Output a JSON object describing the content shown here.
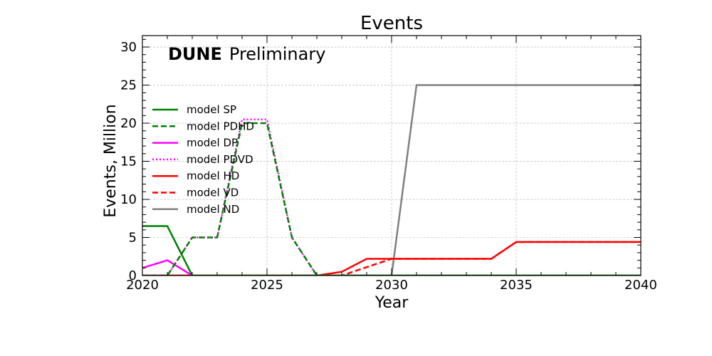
{
  "chart_data": {
    "type": "line",
    "title": "Events",
    "xlabel": "Year",
    "ylabel": "Events, Million",
    "annotation": {
      "bold": "DUNE",
      "text": "Preliminary"
    },
    "xlim": [
      2020,
      2040
    ],
    "ylim": [
      0,
      31.5
    ],
    "xticks": [
      2020,
      2025,
      2030,
      2035,
      2040
    ],
    "yticks": [
      0,
      5,
      10,
      15,
      20,
      25,
      30
    ],
    "grid": true,
    "legend_position": "left",
    "x": [
      2020,
      2021,
      2022,
      2023,
      2024,
      2025,
      2026,
      2027,
      2028,
      2029,
      2030,
      2031,
      2032,
      2033,
      2034,
      2035,
      2036,
      2037,
      2038,
      2039,
      2040
    ],
    "series": [
      {
        "name": "model SP",
        "color": "#008000",
        "dash": "solid",
        "values": [
          6.5,
          6.5,
          0,
          0,
          0,
          0,
          0,
          0,
          0,
          0,
          0,
          0,
          0,
          0,
          0,
          0,
          0,
          0,
          0,
          0,
          0
        ]
      },
      {
        "name": "model PDHD",
        "color": "#008000",
        "dash": "dashed",
        "values": [
          0,
          0,
          5,
          5,
          20,
          20,
          5,
          0,
          0,
          0,
          0,
          0,
          0,
          0,
          0,
          0,
          0,
          0,
          0,
          0,
          0
        ]
      },
      {
        "name": "model DP",
        "color": "#ff00ff",
        "dash": "solid",
        "values": [
          1,
          2,
          0,
          0,
          0,
          0,
          0,
          0,
          0,
          0,
          0,
          0,
          0,
          0,
          0,
          0,
          0,
          0,
          0,
          0,
          0
        ]
      },
      {
        "name": "model PDVD",
        "color": "#ff00ff",
        "dash": "dotted",
        "values": [
          0,
          0,
          5,
          5,
          20.5,
          20.5,
          5,
          0,
          0,
          0,
          0,
          0,
          0,
          0,
          0,
          0,
          0,
          0,
          0,
          0,
          0
        ]
      },
      {
        "name": "model HD",
        "color": "#ff0000",
        "dash": "solid",
        "values": [
          0,
          0,
          0,
          0,
          0,
          0,
          0,
          0,
          0.5,
          2.2,
          2.2,
          2.2,
          2.2,
          2.2,
          2.2,
          4.4,
          4.4,
          4.4,
          4.4,
          4.4,
          4.4
        ]
      },
      {
        "name": "model VD",
        "color": "#ff0000",
        "dash": "dashed",
        "values": [
          0,
          0,
          0,
          0,
          0,
          0,
          0,
          0,
          0,
          1.1,
          2.2,
          2.2,
          2.2,
          2.2,
          2.2,
          4.4,
          4.4,
          4.4,
          4.4,
          4.4,
          4.4
        ]
      },
      {
        "name": "model ND",
        "color": "#808080",
        "dash": "solid",
        "values": [
          0,
          0,
          0,
          0,
          0,
          0,
          0,
          0,
          0,
          0,
          0,
          25,
          25,
          25,
          25,
          25,
          25,
          25,
          25,
          25,
          25
        ]
      }
    ]
  }
}
